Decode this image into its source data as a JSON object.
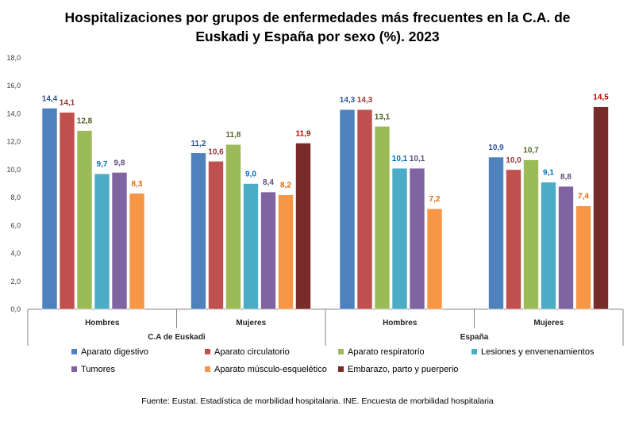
{
  "chart_data": {
    "type": "bar",
    "title_line1": "Hospitalizaciones por grupos de enfermedades más frecuentes en la C.A. de",
    "title_line2": "Euskadi y España por sexo (%). 2023",
    "ylim": [
      0,
      18
    ],
    "yticks": [
      "0,0",
      "2,0",
      "4,0",
      "6,0",
      "8,0",
      "10,0",
      "12,0",
      "14,0",
      "16,0",
      "18,0"
    ],
    "regions": [
      "C.A de Euskadi",
      "España"
    ],
    "categories": [
      "Hombres",
      "Mujeres",
      "Hombres",
      "Mujeres"
    ],
    "series": [
      {
        "name": "Aparato digestivo",
        "color": "#4F81BD",
        "label_color": "#2F5597",
        "values": [
          14.4,
          11.2,
          14.3,
          10.9
        ],
        "labels": [
          "14,4",
          "11,2",
          "14,3",
          "10,9"
        ]
      },
      {
        "name": "Aparato circulatorio",
        "color": "#C0504D",
        "label_color": "#943634",
        "values": [
          14.1,
          10.6,
          14.3,
          10.0
        ],
        "labels": [
          "14,1",
          "10,6",
          "14,3",
          "10,0"
        ]
      },
      {
        "name": "Aparato respiratorio",
        "color": "#9BBB59",
        "label_color": "#4F6228",
        "values": [
          12.8,
          11.8,
          13.1,
          10.7
        ],
        "labels": [
          "12,8",
          "11,8",
          "13,1",
          "10,7"
        ]
      },
      {
        "name": "Lesiones y envenenamientos",
        "color": "#4BACC6",
        "label_color": "#0070C0",
        "values": [
          9.7,
          9.0,
          10.1,
          9.1
        ],
        "labels": [
          "9,7",
          "9,0",
          "10,1",
          "9,1"
        ]
      },
      {
        "name": "Tumores",
        "color": "#8064A2",
        "label_color": "#604A7B",
        "values": [
          9.8,
          8.4,
          10.1,
          8.8
        ],
        "labels": [
          "9,8",
          "8,4",
          "10,1",
          "8,8"
        ]
      },
      {
        "name": "Aparato músculo-esquelético",
        "color": "#F79646",
        "label_color": "#E46C0A",
        "values": [
          8.3,
          8.2,
          7.2,
          7.4
        ],
        "labels": [
          "8,3",
          "8,2",
          "7,2",
          "7,4"
        ]
      },
      {
        "name": "Embarazo, parto y puerperio",
        "color": "#772C2A",
        "label_color": "#C00000",
        "values": [
          null,
          11.9,
          null,
          14.5
        ],
        "labels": [
          null,
          "11,9",
          null,
          "14,5"
        ]
      }
    ],
    "legend_position": "bottom",
    "grid": false
  },
  "source": "Fuente: Eustat. Estadística de morbilidad hospitalaria. INE. Encuesta de morbilidad hospitalaria"
}
